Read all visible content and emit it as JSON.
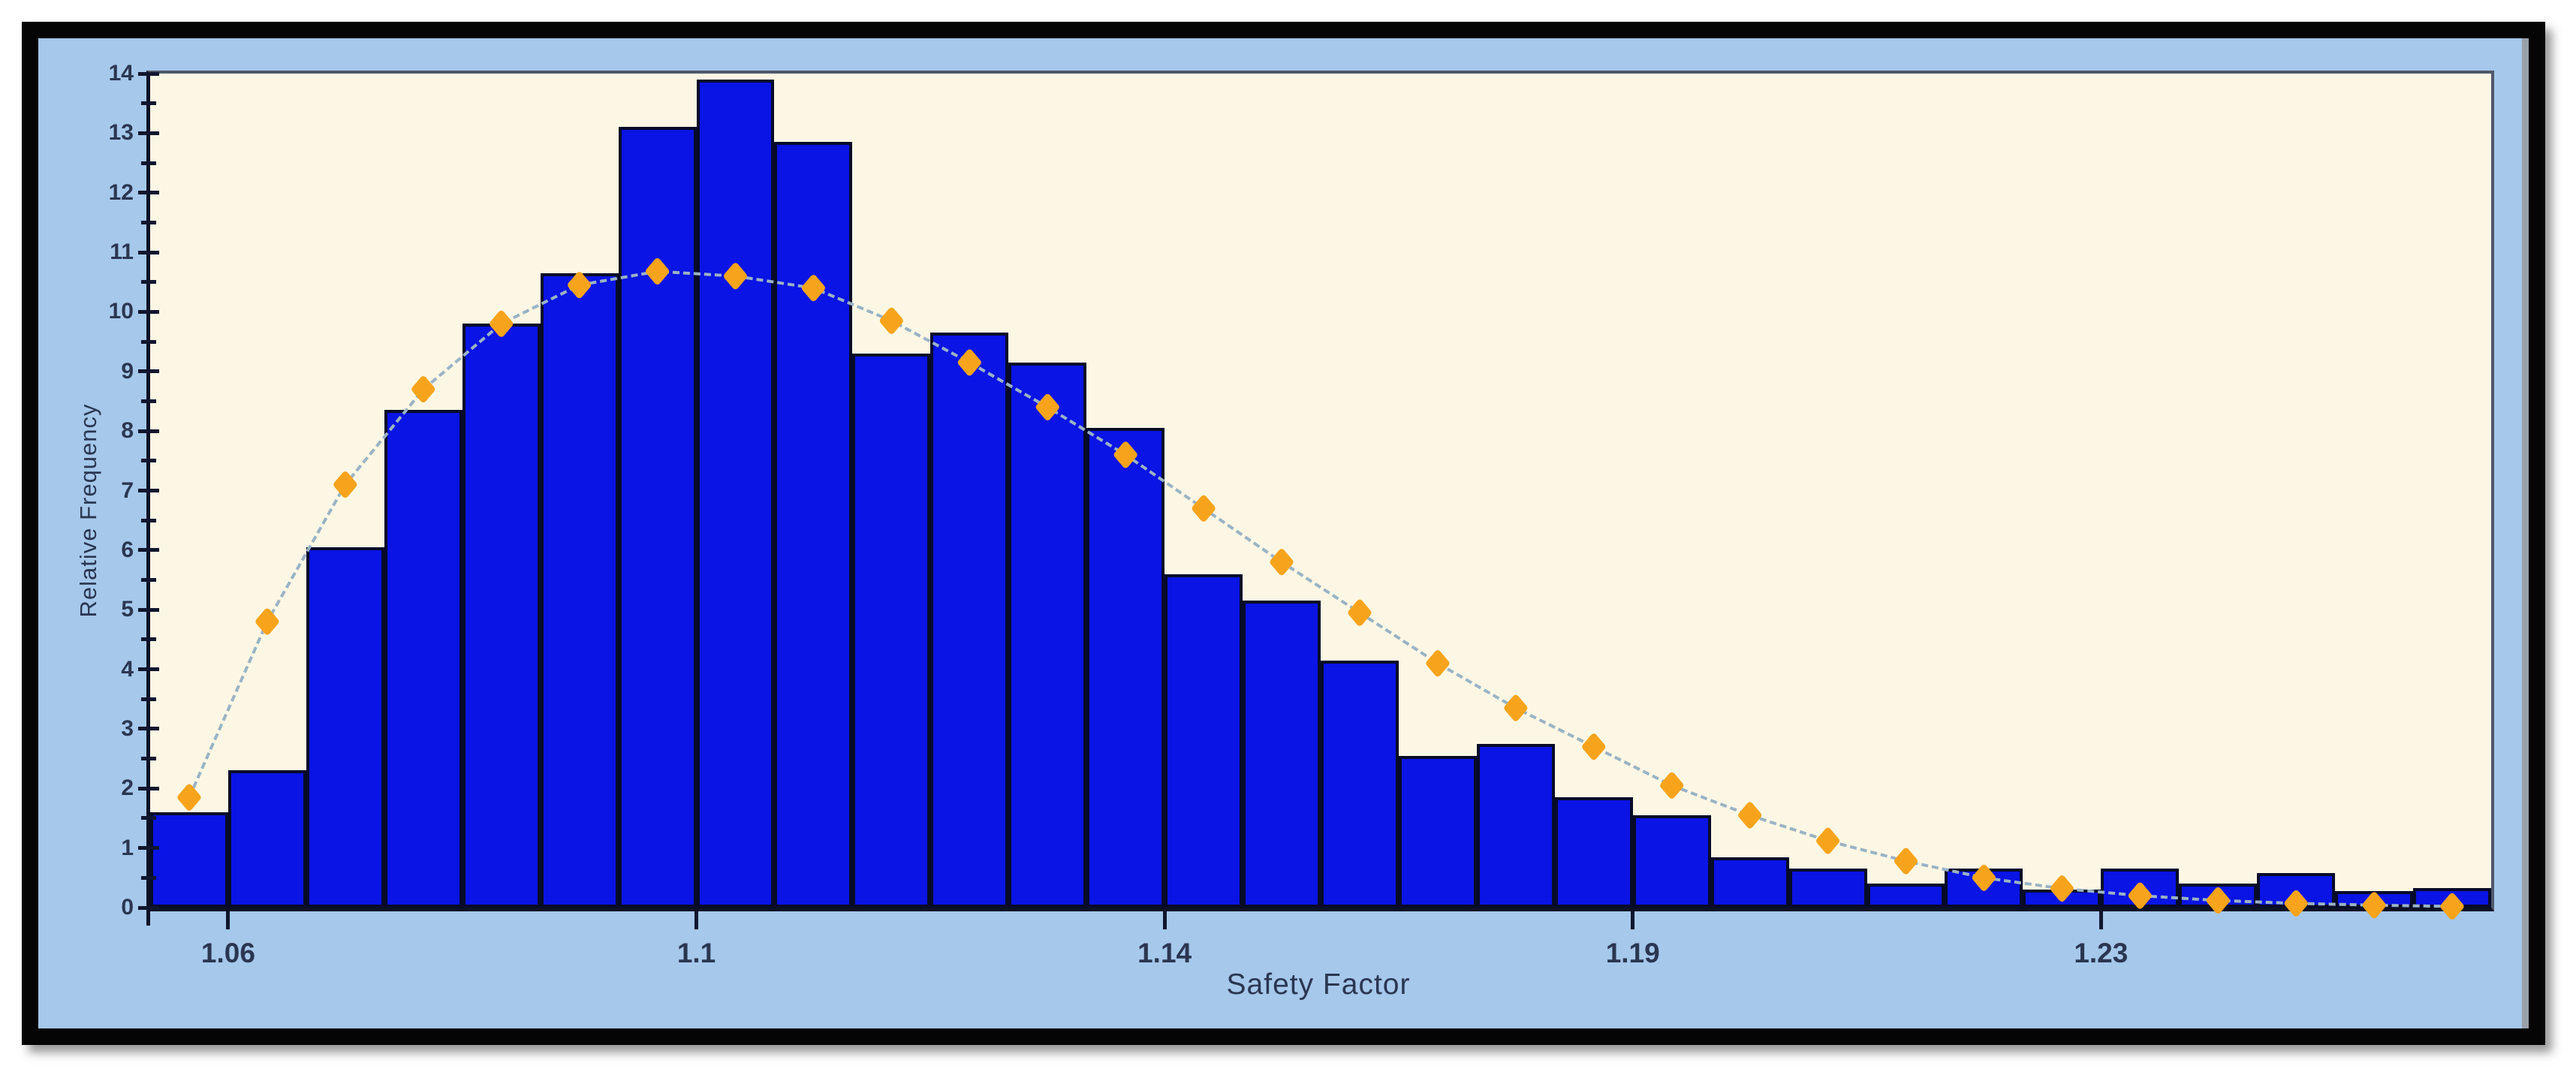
{
  "chart_data": {
    "type": "bar",
    "subtype": "histogram_with_fitted_distribution",
    "title": "",
    "xlabel": "Safety Factor",
    "ylabel": "Relative Frequency",
    "x_range": [
      1.0525,
      1.2625
    ],
    "ylim": [
      0,
      14
    ],
    "bin_width": 0.007,
    "bin_start": 1.0525,
    "grid": false,
    "legend": "none",
    "bin_centers": [
      1.056,
      1.063,
      1.07,
      1.077,
      1.084,
      1.091,
      1.098,
      1.105,
      1.112,
      1.119,
      1.126,
      1.133,
      1.14,
      1.147,
      1.154,
      1.161,
      1.168,
      1.175,
      1.182,
      1.189,
      1.196,
      1.203,
      1.21,
      1.217,
      1.224,
      1.231,
      1.238,
      1.245,
      1.252,
      1.259
    ],
    "bar_values": [
      1.6,
      2.3,
      6.05,
      8.35,
      9.8,
      10.65,
      13.1,
      13.9,
      12.85,
      9.3,
      9.65,
      9.15,
      8.05,
      5.6,
      5.15,
      4.15,
      2.55,
      2.75,
      1.85,
      1.55,
      0.85,
      0.65,
      0.4,
      0.65,
      0.3,
      0.65,
      0.4,
      0.58,
      0.28,
      0.33
    ],
    "series": [
      {
        "name": "relative-frequency-histogram",
        "type": "bar",
        "values": [
          1.6,
          2.3,
          6.05,
          8.35,
          9.8,
          10.65,
          13.1,
          13.9,
          12.85,
          9.3,
          9.65,
          9.15,
          8.05,
          5.6,
          5.15,
          4.15,
          2.55,
          2.75,
          1.85,
          1.55,
          0.85,
          0.65,
          0.4,
          0.65,
          0.3,
          0.65,
          0.4,
          0.58,
          0.28,
          0.33
        ]
      },
      {
        "name": "fitted-distribution-curve",
        "type": "line",
        "values": [
          1.85,
          4.8,
          7.1,
          8.7,
          9.8,
          10.45,
          10.68,
          10.6,
          10.4,
          9.85,
          9.15,
          8.4,
          7.6,
          6.7,
          5.8,
          4.95,
          4.1,
          3.35,
          2.7,
          2.05,
          1.55,
          1.12,
          0.78,
          0.5,
          0.32,
          0.2,
          0.12,
          0.07,
          0.04,
          0.02
        ]
      }
    ],
    "x_ticks": [
      {
        "value": 1.0595,
        "label": "1.06"
      },
      {
        "value": 1.1015,
        "label": "1.1"
      },
      {
        "value": 1.1435,
        "label": "1.14"
      },
      {
        "value": 1.1855,
        "label": "1.19"
      },
      {
        "value": 1.2275,
        "label": "1.23"
      }
    ],
    "y_tick_labels": [
      "0",
      "1",
      "2",
      "3",
      "4",
      "5",
      "6",
      "7",
      "8",
      "9",
      "10",
      "11",
      "12",
      "13",
      "14"
    ],
    "y_tick_major_step": 1,
    "y_tick_minor_step": 0.5,
    "colors": {
      "panel_background": "#a5c8eb",
      "plot_background": "#fcf7e4",
      "bar_fill": "#0a14e4",
      "bar_border": "#070b28",
      "curve_line": "#9ab3c6",
      "point_fill": "#f7a41c",
      "point_edge": "#e0920f",
      "axis_line": "#0b1024",
      "plot_border": "#4e586b",
      "tick_label": "#2b3651",
      "frame": "#050505"
    }
  }
}
